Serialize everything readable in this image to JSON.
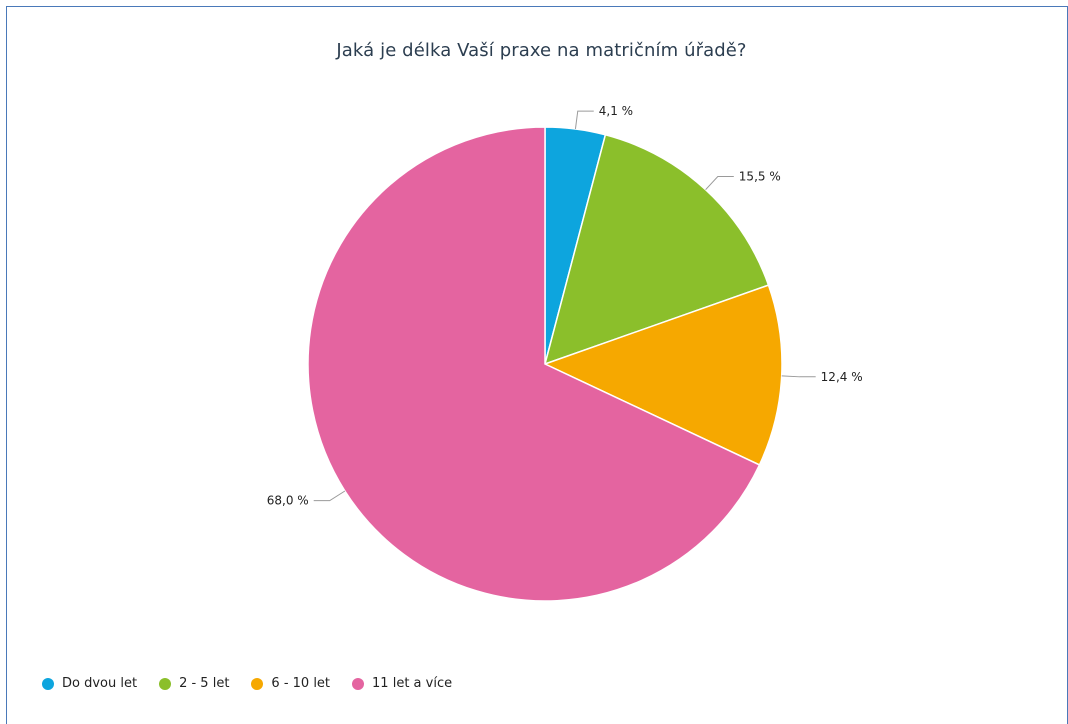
{
  "chart_data": {
    "type": "pie",
    "title": "Jaká je délka Vaší praxe na matričním úřadě?",
    "start_angle": "12 o'clock",
    "direction": "clockwise",
    "legend_position": "bottom-left",
    "slices": [
      {
        "name": "Do dvou let",
        "value": 4.1,
        "label": "4,1 %",
        "color": "#0da5de"
      },
      {
        "name": "2 - 5 let",
        "value": 15.5,
        "label": "15,5 %",
        "color": "#8bbf2b"
      },
      {
        "name": "6 - 10 let",
        "value": 12.4,
        "label": "12,4 %",
        "color": "#f6a800"
      },
      {
        "name": "11 let a více",
        "value": 68.0,
        "label": "68,0 %",
        "color": "#e464a0"
      }
    ]
  }
}
